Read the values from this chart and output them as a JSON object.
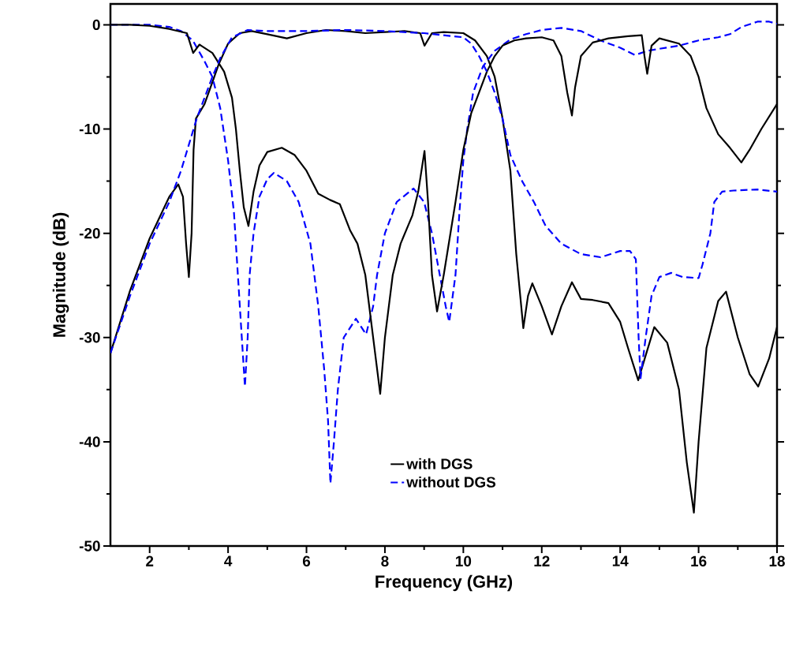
{
  "chart_data": {
    "type": "line",
    "xlabel": "Frequency (GHz)",
    "ylabel": "Magnitude (dB)",
    "xlim": [
      1,
      18
    ],
    "ylim": [
      -50,
      2
    ],
    "xticks": [
      2,
      4,
      6,
      8,
      10,
      12,
      14,
      16,
      18
    ],
    "yticks": [
      -50,
      -40,
      -30,
      -20,
      -10,
      0
    ],
    "grid": false,
    "legend": "bottom",
    "marker": "none",
    "series": [
      {
        "name": "with DGS",
        "color": "#000000",
        "line_style": "solid",
        "x": [
          1,
          1.5,
          2,
          2.5,
          2.73,
          2.85,
          2.93,
          3.0,
          3.07,
          3.12,
          3.18,
          3.4,
          3.6,
          3.76,
          4.0,
          4.3,
          4.6,
          5.0,
          5.5,
          6.0,
          6.5,
          7.0,
          7.5,
          8.0,
          8.5,
          8.9,
          9.01,
          9.2,
          9.5,
          10.0,
          10.3,
          10.6,
          10.8,
          11.0,
          11.2,
          11.35,
          11.53,
          11.65,
          11.76,
          12.0,
          12.26,
          12.5,
          12.77,
          13.0,
          13.3,
          13.7,
          14.0,
          14.2,
          14.46,
          14.66,
          14.87,
          15.2,
          15.5,
          15.7,
          15.88,
          16.0,
          16.2,
          16.5,
          16.7,
          17.0,
          17.3,
          17.52,
          17.8,
          18
        ],
        "values": [
          -31.5,
          -25.5,
          -20.5,
          -16.5,
          -15.3,
          -16.5,
          -21,
          -24.2,
          -20,
          -12,
          -9,
          -7.6,
          -5.5,
          -3.8,
          -1.8,
          -0.8,
          -0.6,
          -0.9,
          -1.3,
          -0.8,
          -0.5,
          -0.6,
          -0.8,
          -0.7,
          -0.6,
          -0.8,
          -2.0,
          -0.8,
          -0.7,
          -0.8,
          -1.5,
          -3,
          -5,
          -9,
          -14,
          -22,
          -29.1,
          -26,
          -24.8,
          -27,
          -29.7,
          -27,
          -24.7,
          -26.3,
          -26.4,
          -26.7,
          -28.5,
          -31,
          -34.1,
          -31.6,
          -29,
          -30.5,
          -35,
          -42,
          -46.8,
          -40,
          -31,
          -26.5,
          -25.6,
          -30,
          -33.5,
          -34.7,
          -32,
          -29
        ]
      },
      {
        "name": "without DGS",
        "color": "#0000ff",
        "line_style": "dashed",
        "x": [
          1,
          2,
          2.5,
          2.8,
          3.1,
          3.4,
          3.6,
          3.8,
          4.0,
          4.15,
          4.25,
          4.35,
          4.43,
          4.5,
          4.55,
          4.65,
          4.8,
          5.0,
          5.17,
          5.5,
          5.8,
          6.1,
          6.3,
          6.45,
          6.55,
          6.61,
          6.7,
          6.8,
          6.95,
          7.26,
          7.52,
          7.7,
          7.8,
          8.0,
          8.3,
          8.73,
          9.0,
          9.2,
          9.4,
          9.55,
          9.64,
          9.8,
          9.9,
          10.0,
          10.1,
          10.25,
          10.5,
          10.8,
          11.2,
          11.6,
          12.0,
          12.5,
          13.0,
          13.5,
          14.0,
          14.38,
          14.7,
          15.0,
          15.5,
          16.0,
          16.5,
          16.8,
          17.1,
          17.5,
          17.8,
          18
        ],
        "values": [
          0,
          0,
          -0.2,
          -0.6,
          -1.5,
          -3.5,
          -5,
          -8,
          -13,
          -18,
          -24,
          -30,
          -34.7,
          -30,
          -24,
          -20,
          -16.5,
          -14.8,
          -14.2,
          -15,
          -17,
          -21,
          -27,
          -33,
          -38,
          -44,
          -40,
          -35,
          -30,
          -28.2,
          -29.7,
          -27,
          -24,
          -20,
          -17,
          -15.7,
          -17,
          -20,
          -24,
          -27,
          -28.5,
          -24,
          -18,
          -13,
          -10,
          -6.5,
          -4,
          -2.5,
          -1.4,
          -0.9,
          -0.5,
          -0.3,
          -0.6,
          -1.5,
          -2.2,
          -2.9,
          -2.5,
          -2.3,
          -2.0,
          -1.5,
          -1.2,
          -0.9,
          -0.2,
          0.3,
          0.3,
          0.1
        ]
      },
      {
        "color": "#000000",
        "line_style": "solid",
        "x": [
          1,
          1.5,
          2,
          2.5,
          2.95,
          3.11,
          3.27,
          3.6,
          3.9,
          4.1,
          4.2,
          4.3,
          4.4,
          4.52,
          4.65,
          4.8,
          5.0,
          5.37,
          5.7,
          6.0,
          6.3,
          6.6,
          6.85,
          7.11,
          7.3,
          7.5,
          7.7,
          7.88,
          8.0,
          8.2,
          8.4,
          8.7,
          8.85,
          9.01,
          9.1,
          9.2,
          9.33,
          9.5,
          9.8,
          10.0,
          10.2,
          10.4,
          10.6,
          10.8,
          11.0,
          11.3,
          11.6,
          12.0,
          12.3,
          12.5,
          12.65,
          12.77,
          12.85,
          13.0,
          13.3,
          13.7,
          14.2,
          14.55,
          14.62,
          14.69,
          14.8,
          15.0,
          15.5,
          15.8,
          16.0,
          16.2,
          16.5,
          16.8,
          17.09,
          17.3,
          17.6,
          18
        ],
        "values": [
          0,
          0,
          -0.1,
          -0.4,
          -0.8,
          -2.7,
          -1.9,
          -2.7,
          -4.5,
          -7,
          -10,
          -14,
          -17.5,
          -19.3,
          -16,
          -13.5,
          -12.2,
          -11.8,
          -12.5,
          -14,
          -16.2,
          -16.8,
          -17.2,
          -19.7,
          -21,
          -24,
          -30,
          -35.4,
          -30,
          -24,
          -21,
          -18.3,
          -16,
          -12.1,
          -17,
          -24,
          -27.5,
          -24,
          -17,
          -12,
          -8.5,
          -6.5,
          -4.5,
          -3,
          -2,
          -1.5,
          -1.3,
          -1.2,
          -1.5,
          -3,
          -6.5,
          -8.7,
          -6,
          -3,
          -1.7,
          -1.3,
          -1.1,
          -1.0,
          -3,
          -4.7,
          -2,
          -1.3,
          -1.8,
          -3,
          -5,
          -8,
          -10.5,
          -11.8,
          -13.2,
          -12,
          -10,
          -7.6
        ]
      },
      {
        "color": "#0000ff",
        "line_style": "dashed",
        "x": [
          1,
          1.5,
          2,
          2.5,
          2.8,
          3.0,
          3.2,
          3.4,
          3.6,
          3.8,
          4.1,
          4.5,
          5,
          6,
          7,
          8,
          9,
          10,
          10.2,
          10.4,
          10.6,
          10.8,
          11,
          11.2,
          11.5,
          11.8,
          12.1,
          12.5,
          13,
          13.5,
          14.0,
          14.25,
          14.4,
          14.47,
          14.52,
          14.65,
          14.8,
          15.0,
          15.3,
          15.6,
          16.0,
          16.1,
          16.3,
          16.4,
          16.6,
          16.89,
          17.5,
          18
        ],
        "values": [
          -31.5,
          -26,
          -21,
          -17,
          -14,
          -11.5,
          -9,
          -7,
          -5,
          -3.2,
          -1.2,
          -0.5,
          -0.6,
          -0.6,
          -0.5,
          -0.6,
          -0.8,
          -1.2,
          -1.8,
          -3,
          -4.5,
          -6.5,
          -9,
          -12.5,
          -15,
          -17,
          -19.3,
          -21,
          -22,
          -22.3,
          -21.7,
          -21.7,
          -22.5,
          -30,
          -33.9,
          -30,
          -26,
          -24.2,
          -23.8,
          -24.2,
          -24.3,
          -23,
          -20,
          -17,
          -16,
          -15.9,
          -15.8,
          -16
        ]
      }
    ]
  }
}
